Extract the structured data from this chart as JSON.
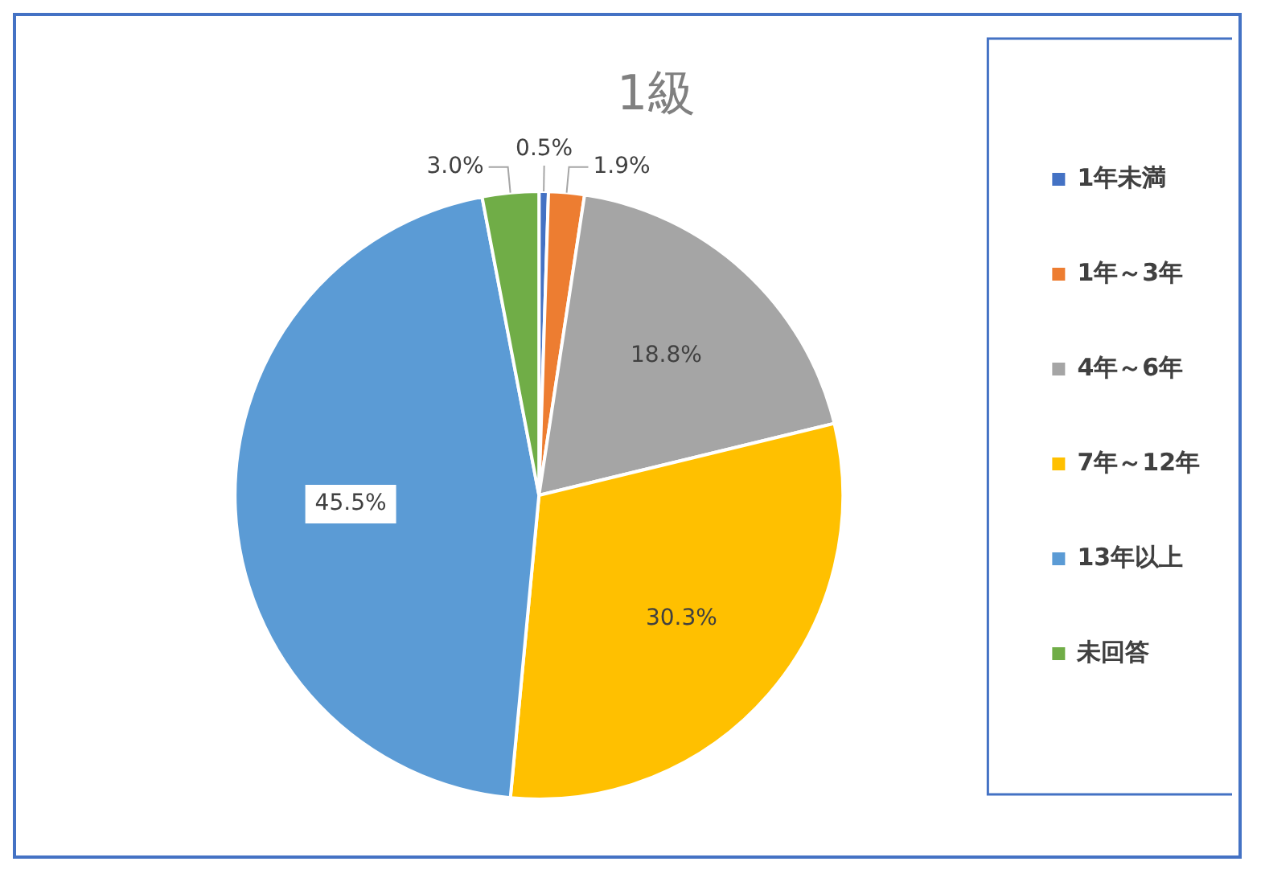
{
  "chart_data": {
    "type": "pie",
    "title": "1級",
    "categories": [
      "1年未満",
      "1年～3年",
      "4年～6年",
      "7年～12年",
      "13年以上",
      "未回答"
    ],
    "values": [
      0.5,
      1.9,
      18.8,
      30.3,
      45.5,
      3.0
    ],
    "colors": [
      "#4472c4",
      "#ed7d31",
      "#a5a5a5",
      "#ffc000",
      "#5b9bd5",
      "#70ad47"
    ],
    "value_labels": [
      "0.5%",
      "1.9%",
      "18.8%",
      "30.3%",
      "45.5%",
      "3.0%"
    ],
    "legend": "right"
  }
}
